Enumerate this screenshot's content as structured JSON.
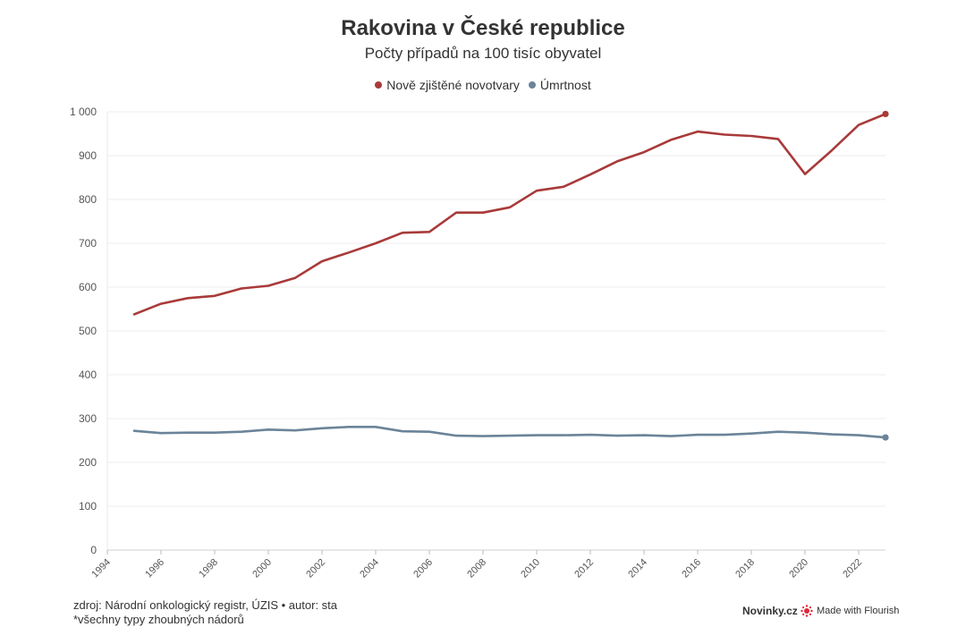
{
  "chart_data": {
    "type": "line",
    "title": "Rakovina v České republice",
    "subtitle": "Počty případů na 100 tisíc obyvatel",
    "xlim": [
      1994,
      2023
    ],
    "ylim": [
      0,
      1000
    ],
    "x_ticks": [
      "1994",
      "1996",
      "1998",
      "2000",
      "2002",
      "2004",
      "2006",
      "2008",
      "2010",
      "2012",
      "2014",
      "2016",
      "2018",
      "2020",
      "2022"
    ],
    "y_ticks": [
      "0",
      "100",
      "200",
      "300",
      "400",
      "500",
      "600",
      "700",
      "800",
      "900",
      "1 000"
    ],
    "grid": true,
    "legend_position": "top-center",
    "x": [
      1995,
      1996,
      1997,
      1998,
      1999,
      2000,
      2001,
      2002,
      2003,
      2004,
      2005,
      2006,
      2007,
      2008,
      2009,
      2010,
      2011,
      2012,
      2013,
      2014,
      2015,
      2016,
      2017,
      2018,
      2019,
      2020,
      2021,
      2022,
      2023
    ],
    "series": [
      {
        "name": "Nově zjištěné novotvary",
        "color": "#a93a3a",
        "values": [
          538,
          562,
          575,
          580,
          597,
          603,
          621,
          659,
          679,
          700,
          724,
          726,
          770,
          770,
          782,
          820,
          829,
          857,
          887,
          908,
          936,
          955,
          948,
          945,
          938,
          858,
          912,
          970,
          995
        ]
      },
      {
        "name": "Úmrtnost",
        "color": "#6b8499",
        "values": [
          272,
          267,
          268,
          268,
          270,
          275,
          273,
          278,
          281,
          281,
          271,
          270,
          261,
          260,
          261,
          262,
          262,
          263,
          261,
          262,
          260,
          263,
          263,
          266,
          270,
          268,
          264,
          262,
          257
        ]
      }
    ]
  },
  "footer": {
    "source": "zdroj: Národní onkologický registr, ÚZIS • autor: sta",
    "note": "*všechny typy zhoubných nádorů"
  },
  "branding": {
    "publisher": "Novinky.cz",
    "made_with": "Made with Flourish",
    "flourish_color": "#e0273a"
  }
}
